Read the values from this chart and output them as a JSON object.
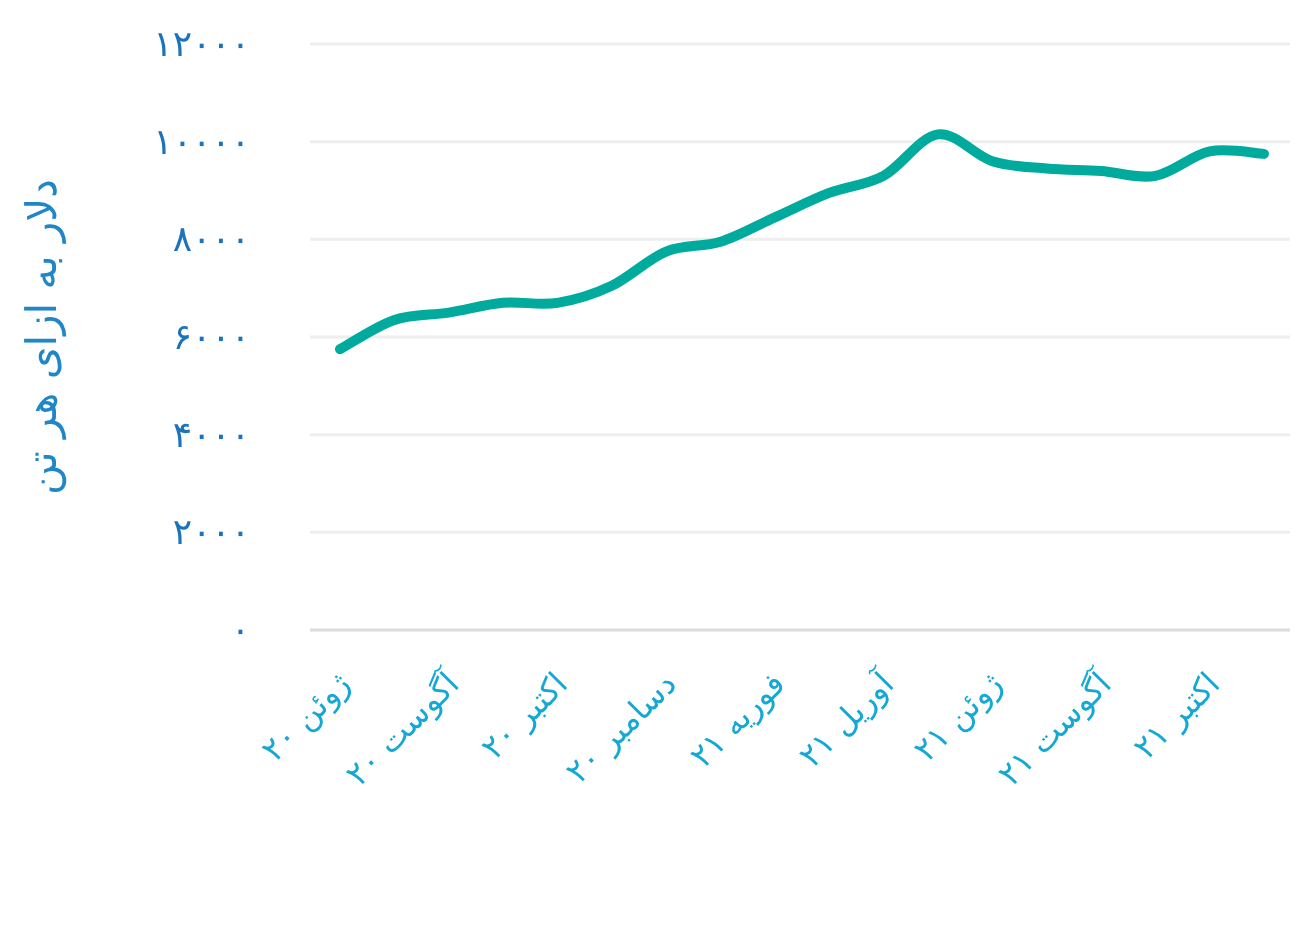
{
  "chart_data": {
    "type": "line",
    "ylabel": "دلار به ازای هر تن",
    "categories": [
      "ژوئن ۲۰",
      null,
      "آگوست ۲۰",
      null,
      "اکتبر ۲۰",
      null,
      "دسامبر ۲۰",
      null,
      "فوریه ۲۱",
      null,
      "آوریل ۲۱",
      null,
      "ژوئن ۲۱",
      null,
      "آگوست ۲۱",
      null,
      "اکتبر ۲۱",
      null
    ],
    "series": [
      {
        "color": "#00ab9e",
        "values": [
          5750,
          6350,
          6500,
          6700,
          6700,
          7050,
          7750,
          7950,
          8450,
          8950,
          9300,
          10150,
          9600,
          9450,
          9400,
          9300,
          9800,
          9750
        ]
      }
    ],
    "ylim": [
      0,
      12000
    ],
    "yticks": [
      {
        "value": 0,
        "label": "۰"
      },
      {
        "value": 2000,
        "label": "۲۰۰۰"
      },
      {
        "value": 4000,
        "label": "۴۰۰۰"
      },
      {
        "value": 6000,
        "label": "۶۰۰۰"
      },
      {
        "value": 8000,
        "label": "۸۰۰۰"
      },
      {
        "value": 10000,
        "label": "۱۰۰۰۰"
      },
      {
        "value": 12000,
        "label": "۱۲۰۰۰"
      }
    ],
    "grid": "y",
    "marker": "none",
    "line_style": "solid"
  }
}
